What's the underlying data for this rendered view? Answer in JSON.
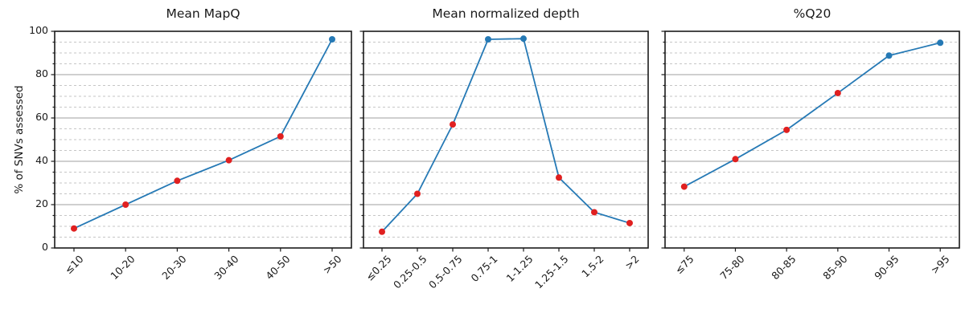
{
  "figure": {
    "background": "#ffffff",
    "ylabel": "% of SNVs assessed",
    "yticks": [
      0,
      20,
      40,
      60,
      80,
      100
    ],
    "ylim": [
      0,
      100
    ],
    "minor_grid_step": 5,
    "major_grid_step": 20,
    "colors": {
      "line": "#2579b5",
      "marker_red": "#e02020",
      "marker_blue": "#2579b5",
      "grid_major": "#9f9f9f",
      "grid_minor": "#c6c6c6",
      "axis": "#1a1a1a",
      "text": "#1a1a1a"
    }
  },
  "chart_data": [
    {
      "type": "line",
      "title": "Mean MapQ",
      "categories": [
        "≤10",
        "10-20",
        "20-30",
        "30-40",
        "40-50",
        ">50"
      ],
      "values": [
        9,
        20,
        31,
        40.5,
        51.5,
        96.3
      ],
      "marker_colors": [
        "#e02020",
        "#e02020",
        "#e02020",
        "#e02020",
        "#e02020",
        "#2579b5"
      ],
      "ylim": [
        0,
        100
      ],
      "grid": "major-solid-minor-dashed",
      "xlabel": "",
      "ylabel": "% of SNVs assessed"
    },
    {
      "type": "line",
      "title": "Mean normalized depth",
      "categories": [
        "≤0.25",
        "0.25-0.5",
        "0.5-0.75",
        "0.75-1",
        "1-1.25",
        "1.25-1.5",
        "1.5-2",
        ">2"
      ],
      "values": [
        7.5,
        25,
        57,
        96.3,
        96.6,
        32.5,
        16.5,
        11.5
      ],
      "marker_colors": [
        "#e02020",
        "#e02020",
        "#e02020",
        "#2579b5",
        "#2579b5",
        "#e02020",
        "#e02020",
        "#e02020"
      ],
      "ylim": [
        0,
        100
      ],
      "grid": "major-solid-minor-dashed",
      "xlabel": "",
      "ylabel": ""
    },
    {
      "type": "line",
      "title": "%Q20",
      "categories": [
        "≤75",
        "75-80",
        "80-85",
        "85-90",
        "90-95",
        ">95"
      ],
      "values": [
        28.3,
        41,
        54.5,
        71.5,
        88.8,
        94.7
      ],
      "marker_colors": [
        "#e02020",
        "#e02020",
        "#e02020",
        "#e02020",
        "#2579b5",
        "#2579b5"
      ],
      "ylim": [
        0,
        100
      ],
      "grid": "major-solid-minor-dashed",
      "xlabel": "",
      "ylabel": ""
    }
  ]
}
